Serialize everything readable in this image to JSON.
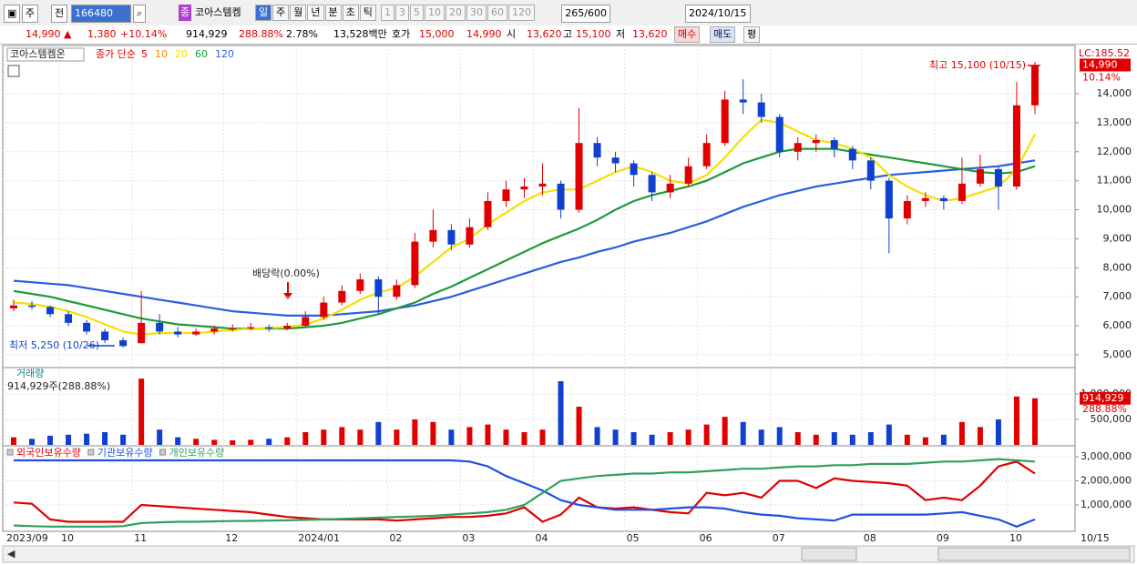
{
  "toolbar": {
    "market": "주",
    "prev": "전",
    "code": "166480",
    "name_badge": "종",
    "name": "코아스템켐",
    "periods": [
      "일",
      "주",
      "월",
      "년",
      "분",
      "초",
      "틱"
    ],
    "intervals": [
      "1",
      "3",
      "5",
      "10",
      "20",
      "30",
      "60",
      "120"
    ],
    "count": "265",
    "count_max": "/600",
    "date": "2024/10/15"
  },
  "info_bar": {
    "price": "14,990 ▲",
    "change": "1,380",
    "change_pct": "+10.14%",
    "volume": "914,929",
    "volume_ratio": "288.88%",
    "turnover": "2.78%",
    "amount": "13,528백만",
    "quote_label": "호가",
    "ask": "15,000",
    "bid": "14,990",
    "open_label": "시",
    "open": "13,620",
    "high_label": "고",
    "high": "15,100",
    "low_label": "저",
    "low": "13,620",
    "buy": "매수",
    "sell": "매도",
    "avg": "평"
  },
  "chart_data": [
    {
      "type": "candlestick",
      "title": "코아스템켐온",
      "legend_prefix": "종가 단순",
      "ma_legend": [
        {
          "name": "5",
          "color": "#e00000"
        },
        {
          "name": "10",
          "color": "#ff8c00"
        }
      ],
      "candles": [
        [
          6600,
          6900,
          6500,
          6700
        ],
        [
          6700,
          6850,
          6550,
          6650
        ],
        [
          6650,
          6700,
          6300,
          6400
        ],
        [
          6400,
          6500,
          6000,
          6100
        ],
        [
          6100,
          6200,
          5700,
          5800
        ],
        [
          5800,
          5900,
          5400,
          5500
        ],
        [
          5500,
          5600,
          5250,
          5300
        ],
        [
          5400,
          7200,
          5400,
          6100
        ],
        [
          6100,
          6400,
          5700,
          5800
        ],
        [
          5800,
          5950,
          5600,
          5700
        ],
        [
          5700,
          5900,
          5650,
          5800
        ],
        [
          5800,
          6000,
          5700,
          5900
        ],
        [
          5900,
          6050,
          5800,
          5900
        ],
        [
          5900,
          6100,
          5850,
          5950
        ],
        [
          5950,
          6050,
          5800,
          5900
        ],
        [
          5900,
          6100,
          5850,
          6000
        ],
        [
          6000,
          6500,
          5950,
          6300
        ],
        [
          6300,
          7000,
          6200,
          6800
        ],
        [
          6800,
          7400,
          6700,
          7200
        ],
        [
          7200,
          7800,
          7100,
          7600
        ],
        [
          7600,
          7700,
          6400,
          7000
        ],
        [
          7000,
          7600,
          6900,
          7400
        ],
        [
          7400,
          9200,
          7300,
          8900
        ],
        [
          8900,
          10000,
          8700,
          9300
        ],
        [
          9300,
          9500,
          8600,
          8800
        ],
        [
          8800,
          9700,
          8700,
          9400
        ],
        [
          9400,
          10600,
          9300,
          10300
        ],
        [
          10300,
          11000,
          10100,
          10700
        ],
        [
          10700,
          11100,
          10400,
          10800
        ],
        [
          10800,
          11600,
          10500,
          10900
        ],
        [
          10900,
          11000,
          9700,
          10000
        ],
        [
          10000,
          13500,
          9900,
          12300
        ],
        [
          12300,
          12500,
          11500,
          11800
        ],
        [
          11800,
          12000,
          11300,
          11600
        ],
        [
          11600,
          11700,
          10800,
          11200
        ],
        [
          11200,
          11300,
          10300,
          10600
        ],
        [
          10600,
          11200,
          10400,
          10900
        ],
        [
          10900,
          11800,
          10800,
          11500
        ],
        [
          11500,
          12600,
          11400,
          12300
        ],
        [
          12300,
          14100,
          12200,
          13800
        ],
        [
          13800,
          14500,
          13300,
          13700
        ],
        [
          13700,
          14000,
          13000,
          13200
        ],
        [
          13200,
          13300,
          11800,
          12000
        ],
        [
          12000,
          12500,
          11700,
          12300
        ],
        [
          12300,
          12600,
          12000,
          12400
        ],
        [
          12400,
          12500,
          11800,
          12100
        ],
        [
          12100,
          12200,
          11400,
          11700
        ],
        [
          11700,
          11800,
          10700,
          11000
        ],
        [
          11000,
          11100,
          8500,
          9700
        ],
        [
          9700,
          10500,
          9500,
          10300
        ],
        [
          10300,
          10600,
          10100,
          10400
        ],
        [
          10400,
          10500,
          10000,
          10300
        ],
        [
          10300,
          11800,
          10200,
          10900
        ],
        [
          10900,
          11900,
          10800,
          11400
        ],
        [
          11400,
          11500,
          10000,
          10800
        ],
        [
          10800,
          14400,
          10700,
          13600
        ],
        [
          13600,
          15100,
          13300,
          14990
        ]
      ],
      "up_color": "#e00000",
      "down_color": "#1040d0",
      "series": [
        {
          "name": "20",
          "color": "#f4e000",
          "values": [
            6800,
            6750,
            6650,
            6500,
            6300,
            6050,
            5800,
            5700,
            5750,
            5750,
            5750,
            5800,
            5850,
            5900,
            5920,
            5950,
            6050,
            6250,
            6550,
            6900,
            7150,
            7300,
            7700,
            8200,
            8700,
            9000,
            9500,
            9900,
            10300,
            10600,
            10700,
            10700,
            11000,
            11300,
            11500,
            11300,
            11000,
            10900,
            11200,
            11800,
            12500,
            13100,
            13000,
            12700,
            12400,
            12300,
            12100,
            11800,
            11200,
            10800,
            10500,
            10300,
            10400,
            10600,
            10800,
            11400,
            12600
          ]
        },
        {
          "name": "60",
          "color": "#1f9a3a",
          "values": [
            7200,
            7100,
            7000,
            6850,
            6700,
            6550,
            6400,
            6250,
            6150,
            6050,
            6000,
            5950,
            5900,
            5900,
            5900,
            5900,
            5950,
            6000,
            6100,
            6250,
            6400,
            6600,
            6800,
            7100,
            7350,
            7650,
            7950,
            8250,
            8550,
            8850,
            9100,
            9350,
            9650,
            10000,
            10300,
            10500,
            10650,
            10800,
            11000,
            11300,
            11600,
            11800,
            12000,
            12100,
            12100,
            12100,
            12000,
            11900,
            11800,
            11700,
            11600,
            11500,
            11400,
            11300,
            11250,
            11300,
            11500
          ]
        },
        {
          "name": "120",
          "color": "#2a5ee0",
          "values": [
            7550,
            7500,
            7450,
            7400,
            7300,
            7200,
            7100,
            7000,
            6900,
            6800,
            6700,
            6600,
            6500,
            6450,
            6400,
            6350,
            6350,
            6350,
            6400,
            6450,
            6500,
            6600,
            6700,
            6850,
            7000,
            7200,
            7400,
            7600,
            7800,
            8000,
            8200,
            8350,
            8550,
            8700,
            8900,
            9050,
            9200,
            9400,
            9600,
            9850,
            10100,
            10300,
            10500,
            10650,
            10800,
            10900,
            11000,
            11100,
            11200,
            11250,
            11300,
            11350,
            11400,
            11450,
            11500,
            11600,
            11700
          ]
        }
      ],
      "xlim": [
        0,
        58.6
      ],
      "ylim": [
        4590,
        15600
      ],
      "yticks": [
        {
          "value": 5000,
          "label": "5,000"
        },
        {
          "value": 6000,
          "label": "6,000"
        },
        {
          "value": 7000,
          "label": "7,000"
        },
        {
          "value": 8000,
          "label": "8,000"
        },
        {
          "value": 9000,
          "label": "9,000"
        },
        {
          "value": 10000,
          "label": "10,000"
        },
        {
          "value": 11000,
          "label": "11,000"
        },
        {
          "value": 12000,
          "label": "12,000"
        },
        {
          "value": 13000,
          "label": "13,000"
        },
        {
          "value": 14000,
          "label": "14,000"
        }
      ],
      "axis_note": "LC:185.52",
      "last_label": {
        "value": 14990,
        "label": "14,990"
      },
      "last_change": "10.14%",
      "annotations": [
        "최고 15,100 (10/15)",
        "최저 5,250 (10/26)",
        "배당락(0.00%)"
      ]
    },
    {
      "type": "bar",
      "title": "거래량",
      "subtitle": "914,929주(288.88%)",
      "values": [
        150000,
        120000,
        180000,
        200000,
        220000,
        250000,
        200000,
        1300000,
        300000,
        150000,
        120000,
        100000,
        90000,
        100000,
        120000,
        150000,
        250000,
        300000,
        350000,
        300000,
        450000,
        300000,
        500000,
        450000,
        300000,
        350000,
        400000,
        300000,
        250000,
        300000,
        1250000,
        750000,
        350000,
        300000,
        250000,
        200000,
        250000,
        300000,
        400000,
        550000,
        450000,
        300000,
        350000,
        250000,
        200000,
        250000,
        200000,
        250000,
        400000,
        200000,
        150000,
        200000,
        450000,
        350000,
        500000,
        950000,
        914929
      ],
      "xlim": [
        0,
        58.6
      ],
      "ylim": [
        0,
        1500000
      ],
      "yticks": [
        {
          "value": 500000,
          "label": "500,000"
        },
        {
          "value": 1000000,
          "label": "1,000,000"
        }
      ],
      "last_label": {
        "value": 914929,
        "label": "914,929"
      },
      "ratio_label": "288.88%"
    },
    {
      "type": "line",
      "series": [
        {
          "name": "외국인보유수량",
          "color": "#e00000",
          "values": [
            1100000,
            1050000,
            400000,
            300000,
            300000,
            300000,
            300000,
            1000000,
            950000,
            900000,
            850000,
            800000,
            750000,
            700000,
            600000,
            500000,
            450000,
            400000,
            400000,
            400000,
            400000,
            350000,
            400000,
            450000,
            500000,
            500000,
            550000,
            650000,
            900000,
            300000,
            600000,
            1300000,
            900000,
            850000,
            900000,
            800000,
            700000,
            650000,
            1500000,
            1400000,
            1500000,
            1300000,
            2000000,
            2000000,
            1700000,
            2100000,
            2000000,
            1950000,
            1900000,
            1800000,
            1200000,
            1300000,
            1200000,
            1800000,
            2600000,
            2800000,
            2300000
          ]
        },
        {
          "name": "기관보유수량",
          "color": "#2050e0",
          "values": [
            2850000,
            2850000,
            2850000,
            2850000,
            2850000,
            2850000,
            2850000,
            2850000,
            2850000,
            2850000,
            2850000,
            2850000,
            2850000,
            2850000,
            2850000,
            2850000,
            2850000,
            2850000,
            2850000,
            2850000,
            2850000,
            2850000,
            2850000,
            2850000,
            2850000,
            2800000,
            2600000,
            2200000,
            1900000,
            1600000,
            1200000,
            1000000,
            900000,
            800000,
            800000,
            800000,
            850000,
            900000,
            900000,
            850000,
            700000,
            600000,
            550000,
            450000,
            400000,
            350000,
            600000,
            600000,
            600000,
            600000,
            600000,
            650000,
            700000,
            550000,
            400000,
            100000,
            400000
          ]
        },
        {
          "name": "개인보유수량",
          "color": "#30a060",
          "values": [
            150000,
            120000,
            100000,
            100000,
            100000,
            100000,
            120000,
            250000,
            280000,
            300000,
            300000,
            320000,
            330000,
            340000,
            350000,
            360000,
            380000,
            400000,
            420000,
            450000,
            470000,
            500000,
            520000,
            550000,
            600000,
            650000,
            700000,
            800000,
            1000000,
            1500000,
            2000000,
            2100000,
            2200000,
            2250000,
            2300000,
            2300000,
            2350000,
            2350000,
            2400000,
            2450000,
            2500000,
            2500000,
            2550000,
            2600000,
            2600000,
            2650000,
            2650000,
            2700000,
            2700000,
            2700000,
            2750000,
            2800000,
            2800000,
            2850000,
            2900000,
            2850000,
            2800000
          ]
        }
      ],
      "xlim": [
        0,
        58.6
      ],
      "ylim": [
        -57000,
        3377000
      ],
      "yticks": [
        {
          "value": 1000000,
          "label": "1,000,000"
        },
        {
          "value": 2000000,
          "label": "2,000,000"
        },
        {
          "value": 3000000,
          "label": "3,000,000"
        }
      ],
      "xticks": [
        {
          "value": 0,
          "label": "2023/09"
        },
        {
          "value": 3,
          "label": "10"
        },
        {
          "value": 7,
          "label": "11"
        },
        {
          "value": 12,
          "label": "12"
        },
        {
          "value": 16,
          "label": "2024/01"
        },
        {
          "value": 21,
          "label": "02"
        },
        {
          "value": 25,
          "label": "03"
        },
        {
          "value": 29,
          "label": "04"
        },
        {
          "value": 34,
          "label": "05"
        },
        {
          "value": 38,
          "label": "06"
        },
        {
          "value": 42,
          "label": "07"
        },
        {
          "value": 47,
          "label": "08"
        },
        {
          "value": 51,
          "label": "09"
        },
        {
          "value": 55,
          "label": "10"
        }
      ],
      "x_end_label": "10/15"
    }
  ]
}
